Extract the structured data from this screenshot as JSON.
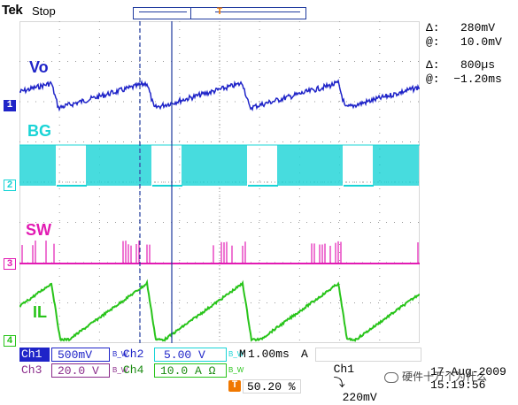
{
  "header": {
    "brand": "Tek",
    "status": "Stop",
    "trigger_position_marker": "T",
    "trigger_marker": "T"
  },
  "cursor_readout": {
    "v_delta": "Δ:   280mV",
    "v_at": "@:   10.0mV",
    "t_delta": "Δ:   800µs",
    "t_at": "@:  −1.20ms"
  },
  "channels": [
    {
      "id": "1",
      "label": "Vo",
      "color": "#1f24c8"
    },
    {
      "id": "2",
      "label": "BG",
      "color": "#19d4d6"
    },
    {
      "id": "3",
      "label": "SW",
      "color": "#e21bb3"
    },
    {
      "id": "4",
      "label": "IL",
      "color": "#28c41a"
    }
  ],
  "settings": {
    "ch1_name": "Ch1",
    "ch1_scale": "500mV",
    "ch2_name": "Ch2",
    "ch2_scale": "5.00 V",
    "ch3_name": "Ch3",
    "ch3_scale": "20.0 V",
    "ch4_name": "Ch4",
    "ch4_scale": "10.0 A Ω",
    "bw1": "B_W",
    "bw2": "B_W",
    "bw3": "B_W",
    "bw4": "B_W",
    "timebase_prefix": "M",
    "timebase": "1.00ms",
    "trigger_mode": "A",
    "trigger_source": "Ch1",
    "trigger_slope": "⤵",
    "trigger_level": "220mV",
    "trigger_pos_marker": "T",
    "trigger_pos": "50.20 %"
  },
  "timestamp": {
    "date": "17-Aug-2009",
    "time": "15:19:56"
  },
  "watermark": "硬件十万个为什么",
  "accent_colors": {
    "grid": "#9a9a9a",
    "cursor": "#1f3a9e",
    "trigger_marker": "#f07800",
    "ch1_box": "#1f24c8",
    "ch3_box": "#8a2a8a"
  }
}
